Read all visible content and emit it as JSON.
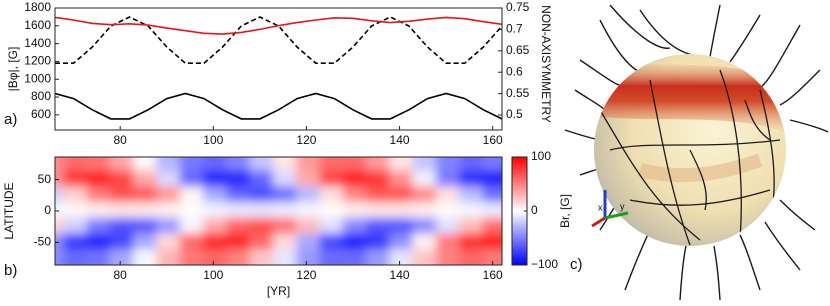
{
  "chart_data": [
    {
      "type": "line",
      "panel_label": "a)",
      "ylabel": "|Bφ|, [G]",
      "y2label": "NON-AXISYMMETRY",
      "x": [
        66,
        70,
        74,
        78,
        82,
        86,
        90,
        94,
        98,
        102,
        106,
        110,
        114,
        118,
        122,
        126,
        130,
        134,
        138,
        142,
        146,
        150,
        154,
        158,
        162
      ],
      "xlim": [
        66,
        162
      ],
      "xticks": [
        80,
        100,
        120,
        140,
        160
      ],
      "ylim": [
        430,
        1800
      ],
      "yticks": [
        600,
        800,
        1000,
        1200,
        1400,
        1600,
        1800
      ],
      "y2lim": [
        0.465,
        0.75
      ],
      "y2ticks": [
        0.5,
        0.55,
        0.6,
        0.65,
        0.7,
        0.75
      ],
      "series": [
        {
          "color": "#000000",
          "dash": false,
          "axis": "y",
          "values": [
            840,
            783,
            657,
            555,
            555,
            657,
            783,
            840,
            783,
            657,
            555,
            555,
            657,
            783,
            840,
            783,
            657,
            555,
            555,
            657,
            783,
            840,
            783,
            657,
            555
          ]
        },
        {
          "color": "#000000",
          "dash": true,
          "axis": "y2",
          "values": [
            0.621,
            0.621,
            0.659,
            0.708,
            0.729,
            0.708,
            0.659,
            0.621,
            0.621,
            0.659,
            0.708,
            0.729,
            0.708,
            0.659,
            0.621,
            0.621,
            0.659,
            0.708,
            0.729,
            0.708,
            0.659,
            0.621,
            0.621,
            0.659,
            0.708
          ]
        },
        {
          "color": "#e8141a",
          "dash": false,
          "axis": "y2",
          "values": [
            0.728,
            0.722,
            0.714,
            0.711,
            0.713,
            0.71,
            0.703,
            0.697,
            0.691,
            0.689,
            0.693,
            0.7,
            0.709,
            0.716,
            0.722,
            0.727,
            0.726,
            0.72,
            0.716,
            0.719,
            0.724,
            0.728,
            0.725,
            0.718,
            0.712
          ]
        }
      ]
    },
    {
      "type": "heatmap",
      "panel_label": "b)",
      "xlabel": "[YR]",
      "ylabel": "LATITUDE",
      "x": [
        65.5,
        70.5,
        75.5,
        80.5,
        85.5,
        90.5,
        95.5,
        100.5,
        105.5,
        110.5,
        115.5,
        120.5,
        125.5,
        130.5,
        135.5,
        140.5,
        145.5,
        150.5,
        155.5,
        160.5
      ],
      "y": [
        75,
        50,
        25,
        0,
        -25,
        -50,
        -75
      ],
      "z": [
        [
          45,
          59,
          55,
          35,
          3,
          -29,
          -53,
          -60,
          -49,
          -23,
          10,
          40,
          58,
          58,
          40,
          10,
          -23,
          -49,
          -60,
          -53
        ],
        [
          44,
          79,
          90,
          73,
          34,
          -15,
          -60,
          -86,
          -86,
          -60,
          -15,
          34,
          73,
          90,
          79,
          44,
          -5,
          -52,
          -83,
          -89
        ],
        [
          -19,
          19,
          52,
          69,
          65,
          41,
          4,
          -34,
          -61,
          -70,
          -57,
          -27,
          12,
          47,
          67,
          67,
          47,
          12,
          -27,
          -57
        ],
        [
          -3,
          3,
          7,
          10,
          9,
          6,
          1,
          -5,
          -9,
          -10,
          -8,
          -4,
          2,
          7,
          10,
          10,
          7,
          2,
          -4,
          -8
        ],
        [
          19,
          -19,
          -52,
          -69,
          -65,
          -41,
          -4,
          34,
          61,
          70,
          57,
          27,
          -12,
          -47,
          -67,
          -67,
          -47,
          -12,
          27,
          57
        ],
        [
          -44,
          -79,
          -90,
          -73,
          -34,
          15,
          60,
          86,
          86,
          60,
          15,
          -34,
          -73,
          -90,
          -79,
          -44,
          5,
          52,
          83,
          89
        ],
        [
          -45,
          -59,
          -55,
          -35,
          -3,
          29,
          53,
          60,
          49,
          23,
          -10,
          -40,
          -58,
          -58,
          -40,
          -10,
          23,
          49,
          60,
          53
        ]
      ],
      "xlim": [
        66,
        162
      ],
      "xticks": [
        80,
        100,
        120,
        140,
        160
      ],
      "ylim": [
        -86,
        86
      ],
      "yticks": [
        50,
        0,
        -50
      ],
      "colorbar": {
        "label": "Br, [G]",
        "lim": [
          -100,
          100
        ],
        "ticks": [
          100,
          0,
          {
            "value": -100,
            "label": "−100"
          }
        ],
        "colors": [
          "#0000ff",
          "#ffffff",
          "#ff0000"
        ]
      }
    }
  ],
  "figure_panel": {
    "label": "c)"
  }
}
